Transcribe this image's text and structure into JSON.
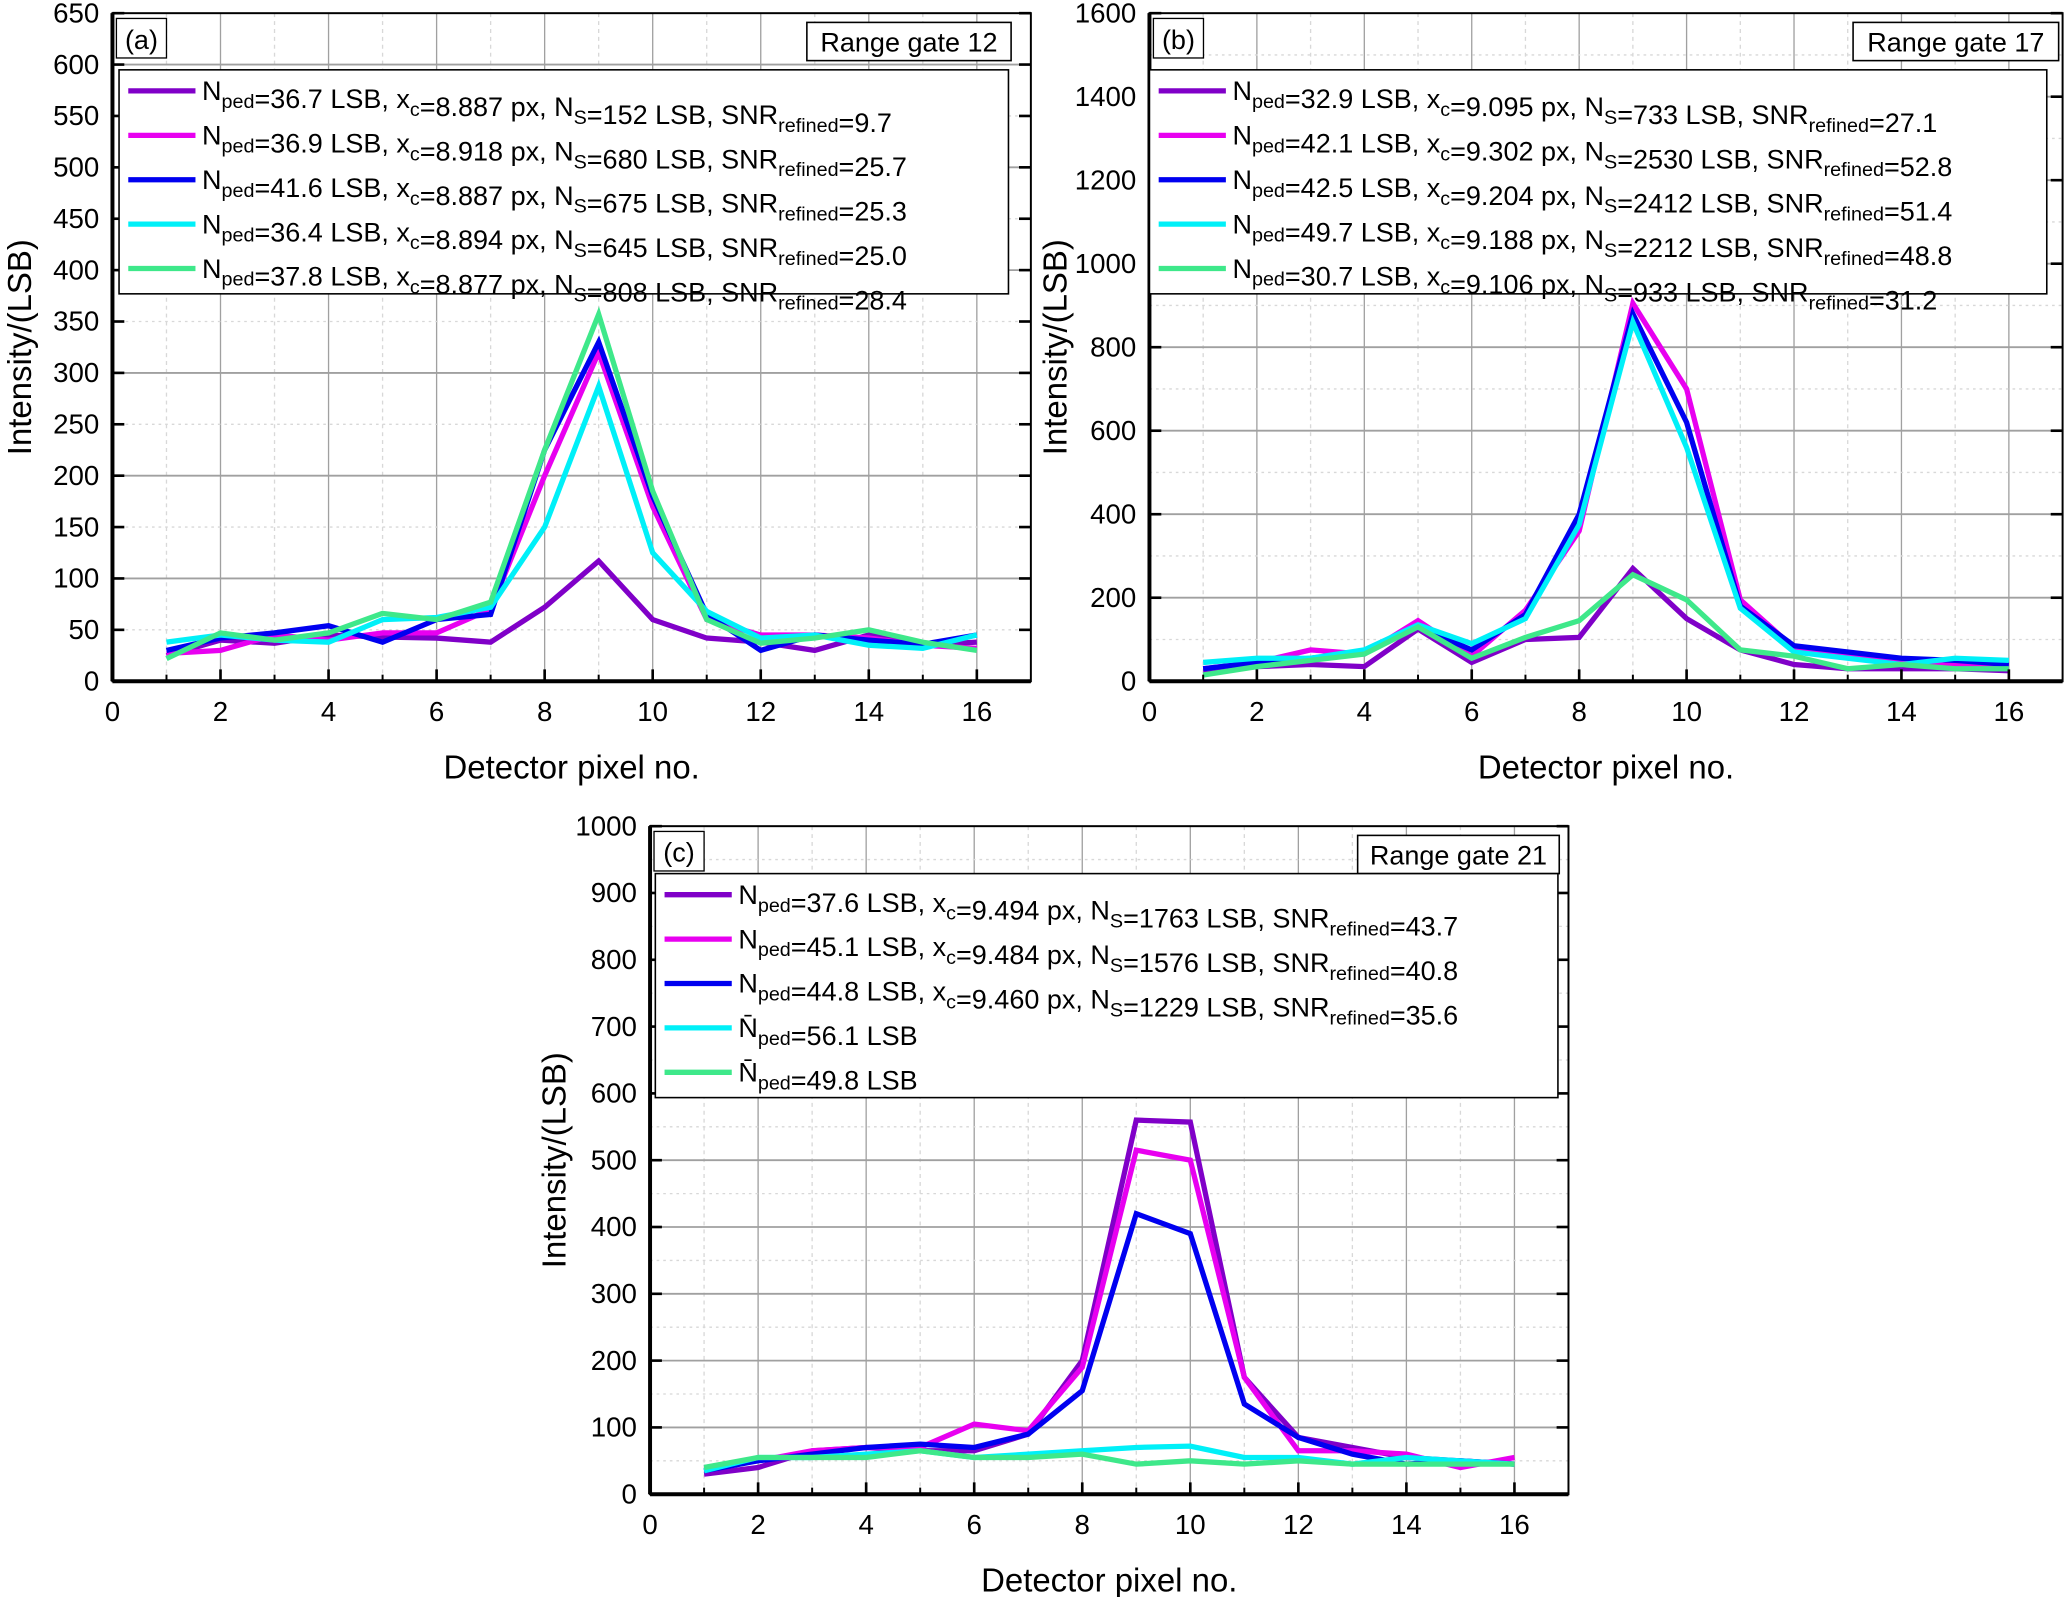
{
  "chart_data": [
    {
      "type": "line",
      "panel_label": "(a)",
      "gate_label": "Range gate 12",
      "xlabel": "Detector pixel no.",
      "ylabel": "Intensity/(LSB)",
      "xlim": [
        0,
        17
      ],
      "ylim": [
        0,
        650
      ],
      "xticks": [
        0,
        2,
        4,
        6,
        8,
        10,
        12,
        14,
        16
      ],
      "yticks": [
        0,
        50,
        100,
        150,
        200,
        250,
        300,
        350,
        400,
        450,
        500,
        550,
        600,
        650
      ],
      "grid": true,
      "legend": "top",
      "x": [
        1,
        2,
        3,
        4,
        5,
        6,
        7,
        8,
        9,
        10,
        11,
        12,
        13,
        14,
        15,
        16
      ],
      "series": [
        {
          "name": "N_{ped}=36.7 LSB, x_{c}=8.887 px, N_{S}=152 LSB, SNR_{refined}=9.7",
          "color": "#8000C8",
          "values": [
            25,
            40,
            37,
            45,
            43,
            42,
            38,
            72,
            117,
            60,
            42,
            38,
            30,
            45,
            35,
            38
          ]
        },
        {
          "name": "N_{ped}=36.9 LSB, x_{c}=8.918 px, N_{S}=680 LSB, SNR_{refined}=25.7",
          "color": "#E800F0",
          "values": [
            27,
            30,
            45,
            40,
            47,
            47,
            70,
            200,
            320,
            170,
            60,
            45,
            45,
            42,
            35,
            32
          ]
        },
        {
          "name": "N_{ped}=41.6 LSB, x_{c}=8.887 px, N_{S}=675 LSB, SNR_{refined}=25.3",
          "color": "#0000F0",
          "values": [
            30,
            42,
            47,
            54,
            38,
            60,
            65,
            225,
            330,
            180,
            65,
            30,
            45,
            40,
            36,
            45
          ]
        },
        {
          "name": "N_{ped}=36.4 LSB, x_{c}=8.894 px, N_{S}=645 LSB, SNR_{refined}=25.0",
          "color": "#00F0F8",
          "values": [
            38,
            45,
            40,
            38,
            60,
            62,
            72,
            150,
            287,
            125,
            68,
            42,
            45,
            35,
            32,
            45
          ]
        },
        {
          "name": "N_{ped}=37.8 LSB, x_{c}=8.877 px, N_{S}=808 LSB, SNR_{refined}=28.4",
          "color": "#3EE88A",
          "values": [
            22,
            47,
            40,
            47,
            66,
            60,
            77,
            225,
            357,
            185,
            60,
            37,
            42,
            50,
            38,
            30
          ]
        }
      ]
    },
    {
      "type": "line",
      "panel_label": "(b)",
      "gate_label": "Range gate 17",
      "xlabel": "Detector pixel no.",
      "ylabel": "Intensity/(LSB)",
      "xlim": [
        0,
        17
      ],
      "ylim": [
        0,
        1600
      ],
      "xticks": [
        0,
        2,
        4,
        6,
        8,
        10,
        12,
        14,
        16
      ],
      "yticks": [
        0,
        200,
        400,
        600,
        800,
        1000,
        1200,
        1400,
        1600
      ],
      "grid": true,
      "legend": "top",
      "x": [
        1,
        2,
        3,
        4,
        5,
        6,
        7,
        8,
        9,
        10,
        11,
        12,
        13,
        14,
        15,
        16
      ],
      "series": [
        {
          "name": "N_{ped}=32.9 LSB, x_{c}=9.095 px, N_{S}=733 LSB, SNR_{refined}=27.1",
          "color": "#8000C8",
          "values": [
            25,
            35,
            40,
            35,
            125,
            45,
            100,
            105,
            270,
            150,
            75,
            40,
            30,
            30,
            30,
            25
          ]
        },
        {
          "name": "N_{ped}=42.1 LSB, x_{c}=9.302 px, N_{S}=2530 LSB, SNR_{refined}=52.8",
          "color": "#E800F0",
          "values": [
            30,
            45,
            75,
            65,
            145,
            60,
            170,
            360,
            905,
            700,
            195,
            80,
            60,
            45,
            40,
            40
          ]
        },
        {
          "name": "N_{ped}=42.5 LSB, x_{c}=9.204 px, N_{S}=2412 LSB, SNR_{refined}=51.4",
          "color": "#0000F0",
          "values": [
            30,
            45,
            55,
            70,
            130,
            75,
            160,
            400,
            880,
            620,
            180,
            85,
            70,
            55,
            50,
            40
          ]
        },
        {
          "name": "N_{ped}=49.7 LSB, x_{c}=9.188 px, N_{S}=2212 LSB, SNR_{refined}=48.8",
          "color": "#00F0F8",
          "values": [
            45,
            55,
            55,
            75,
            135,
            90,
            150,
            375,
            860,
            560,
            175,
            70,
            55,
            40,
            55,
            50
          ]
        },
        {
          "name": "N_{ped}=30.7 LSB, x_{c}=9.106 px, N_{S}=933 LSB, SNR_{refined}=31.2",
          "color": "#3EE88A",
          "values": [
            15,
            35,
            50,
            65,
            130,
            55,
            105,
            145,
            255,
            195,
            75,
            60,
            30,
            40,
            30,
            30
          ]
        }
      ]
    },
    {
      "type": "line",
      "panel_label": "(c)",
      "gate_label": "Range gate 21",
      "xlabel": "Detector pixel no.",
      "ylabel": "Intensity/(LSB)",
      "xlim": [
        0,
        17
      ],
      "ylim": [
        0,
        1000
      ],
      "xticks": [
        0,
        2,
        4,
        6,
        8,
        10,
        12,
        14,
        16
      ],
      "yticks": [
        0,
        100,
        200,
        300,
        400,
        500,
        600,
        700,
        800,
        900,
        1000
      ],
      "grid": true,
      "legend": "top",
      "x": [
        1,
        2,
        3,
        4,
        5,
        6,
        7,
        8,
        9,
        10,
        11,
        12,
        13,
        14,
        15,
        16
      ],
      "series": [
        {
          "name": "N_{ped}=37.6 LSB, x_{c}=9.494 px, N_{S}=1763 LSB, SNR_{refined}=43.7",
          "color": "#8000C8",
          "values": [
            30,
            40,
            65,
            70,
            65,
            65,
            90,
            200,
            560,
            557,
            175,
            85,
            70,
            55,
            50,
            45
          ]
        },
        {
          "name": "N_{ped}=45.1 LSB, x_{c}=9.484 px, N_{S}=1576 LSB, SNR_{refined}=40.8",
          "color": "#E800F0",
          "values": [
            40,
            50,
            65,
            70,
            70,
            105,
            95,
            190,
            515,
            500,
            175,
            65,
            65,
            60,
            40,
            55
          ]
        },
        {
          "name": "N_{ped}=44.8 LSB, x_{c}=9.460 px, N_{S}=1229 LSB, SNR_{refined}=35.6",
          "color": "#0000F0",
          "values": [
            35,
            50,
            60,
            70,
            75,
            70,
            90,
            155,
            420,
            390,
            135,
            85,
            60,
            45,
            50,
            45
          ]
        },
        {
          "name": "N̄_{ped}=56.1 LSB",
          "color": "#00F0F8",
          "values": [
            35,
            55,
            55,
            60,
            65,
            55,
            60,
            65,
            70,
            72,
            55,
            55,
            45,
            55,
            50,
            45
          ]
        },
        {
          "name": "N̄_{ped}=49.8 LSB",
          "color": "#3EE88A",
          "values": [
            40,
            55,
            55,
            55,
            65,
            55,
            55,
            60,
            45,
            50,
            45,
            50,
            45,
            45,
            45,
            45
          ]
        }
      ]
    }
  ]
}
